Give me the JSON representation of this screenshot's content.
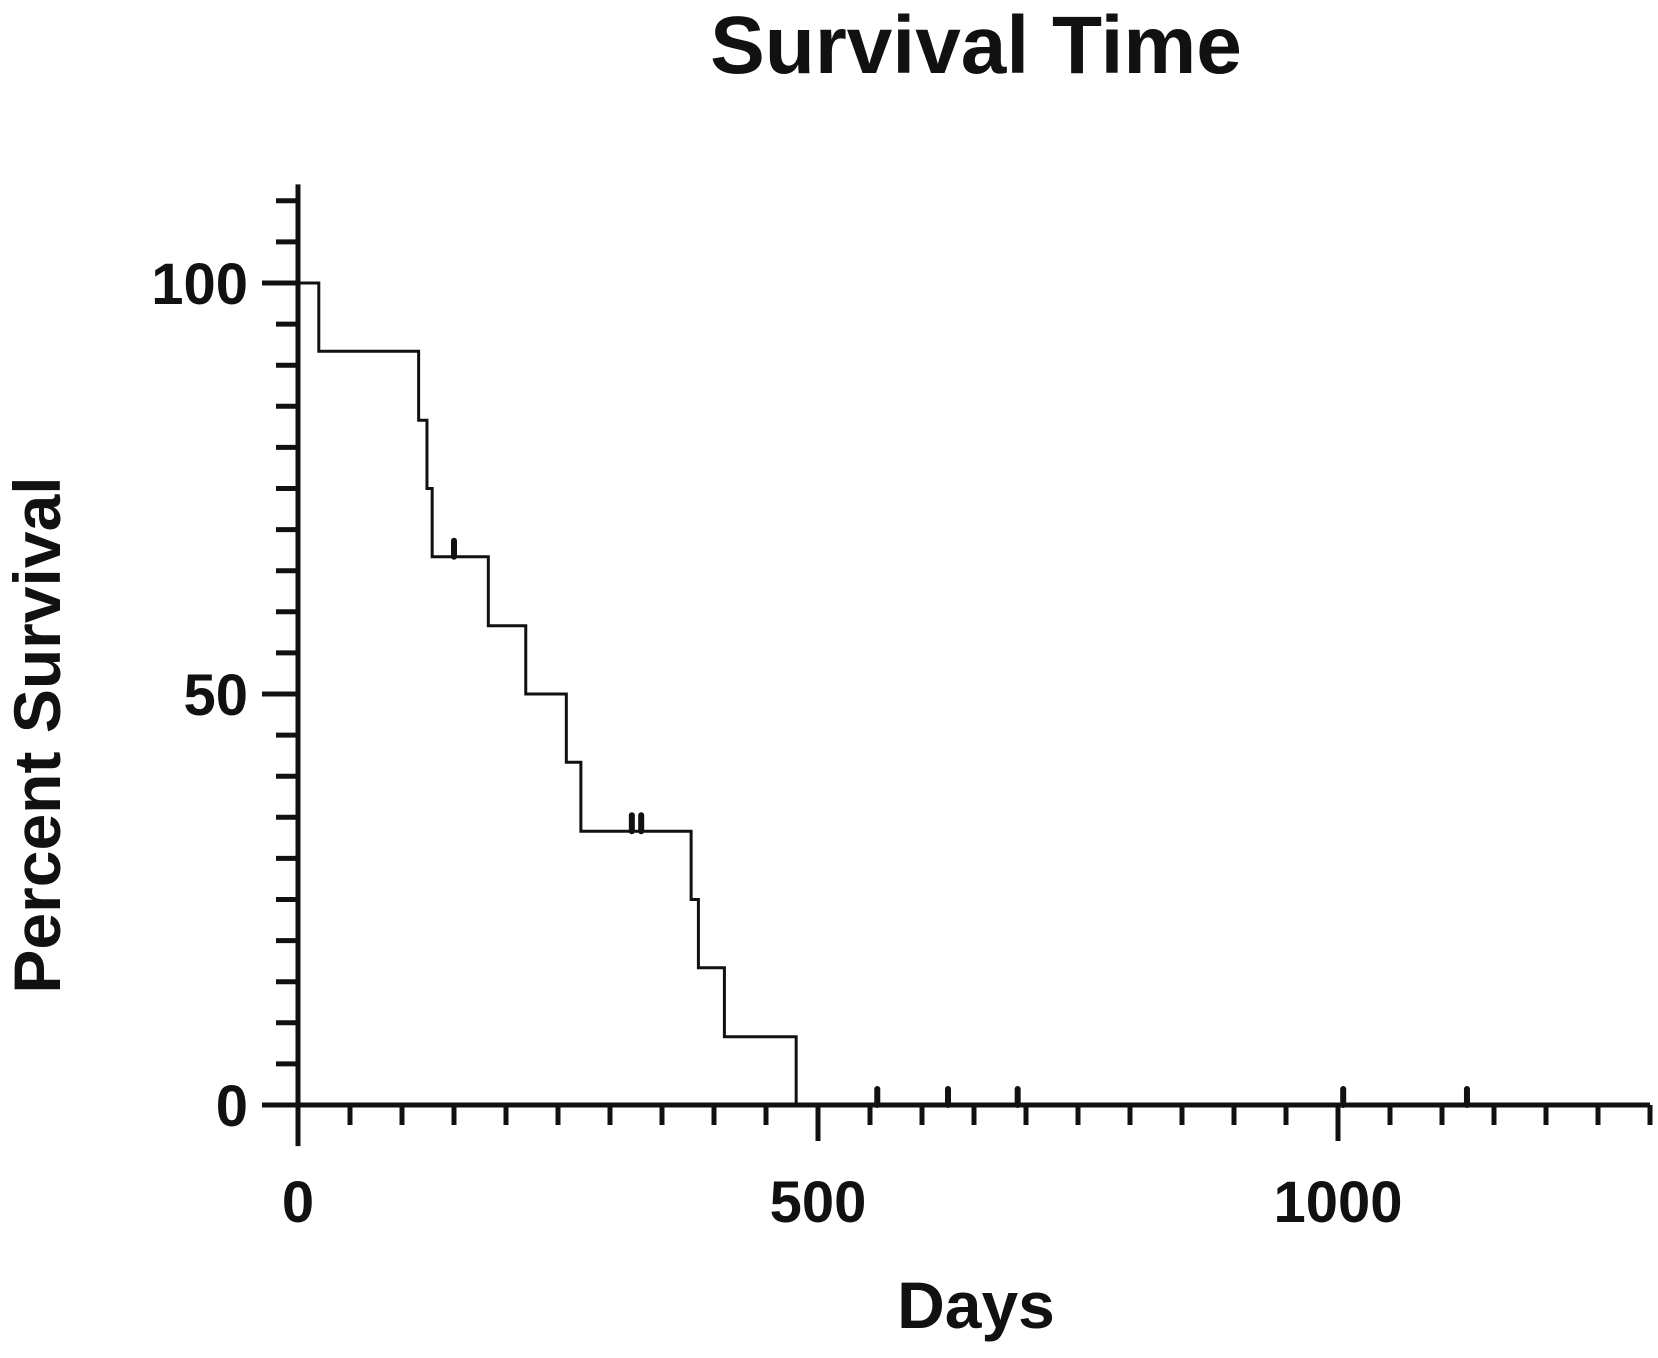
{
  "chart_data": {
    "type": "line",
    "subtype": "kaplan-meier-step",
    "title": "Survival Time",
    "xlabel": "Days",
    "ylabel": "Percent Survival",
    "xlim": [
      0,
      1300
    ],
    "ylim": [
      -5,
      112
    ],
    "x_ticks": [
      0,
      500,
      1000
    ],
    "y_ticks": [
      0,
      50,
      100
    ],
    "x_minor_step": 50,
    "y_minor_step": 5,
    "grid": false,
    "legend": "none",
    "color": "#111111",
    "series": [
      {
        "steps": [
          {
            "x": 0,
            "y": 100
          },
          {
            "x": 20,
            "y": 91.7
          },
          {
            "x": 116,
            "y": 83.3
          },
          {
            "x": 124,
            "y": 75
          },
          {
            "x": 129,
            "y": 66.7
          },
          {
            "x": 183,
            "y": 58.3
          },
          {
            "x": 219,
            "y": 50
          },
          {
            "x": 258,
            "y": 41.7
          },
          {
            "x": 272,
            "y": 33.3
          },
          {
            "x": 378,
            "y": 25
          },
          {
            "x": 385,
            "y": 16.7
          },
          {
            "x": 410,
            "y": 8.3
          },
          {
            "x": 479,
            "y": 0
          }
        ],
        "censored": [
          {
            "x": 150,
            "y": 66.7
          },
          {
            "x": 321,
            "y": 33.3
          },
          {
            "x": 330,
            "y": 33.3
          },
          {
            "x": 557,
            "y": 0
          },
          {
            "x": 625,
            "y": 0
          },
          {
            "x": 692,
            "y": 0
          },
          {
            "x": 1005,
            "y": 0
          },
          {
            "x": 1124,
            "y": 0
          }
        ]
      }
    ]
  }
}
